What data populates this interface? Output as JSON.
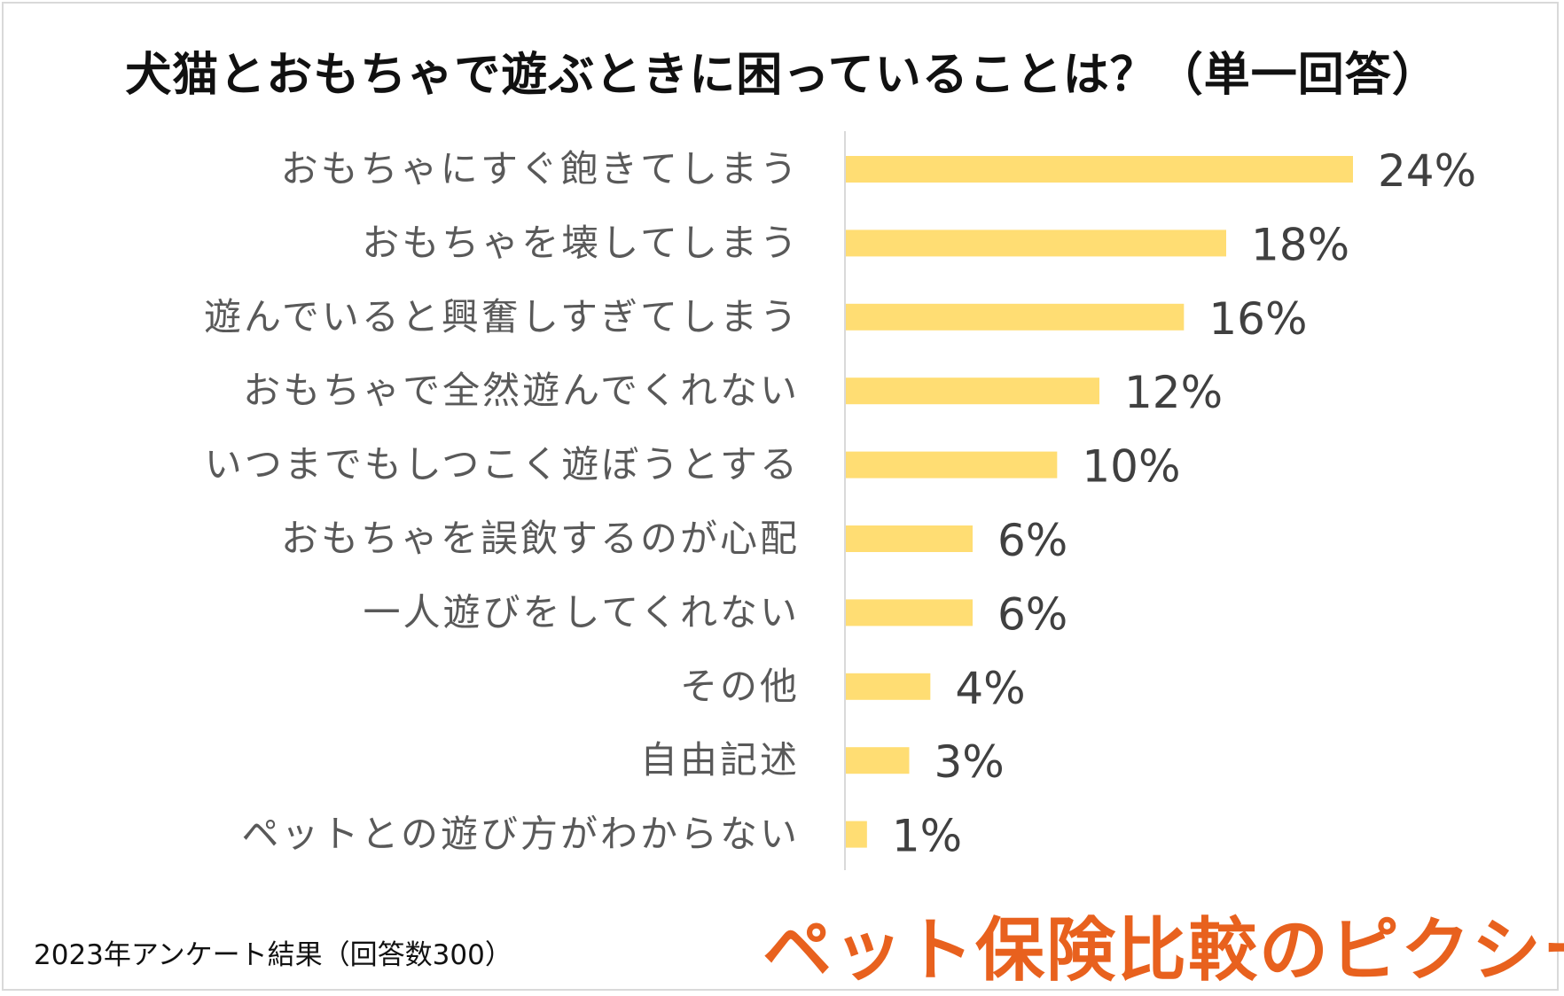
{
  "chart_data": {
    "type": "bar",
    "orientation": "horizontal",
    "title": "犬猫とおもちゃで遊ぶときに困っていることは？（単一回答）",
    "categories": [
      "おもちゃにすぐ飽きてしまう",
      "おもちゃを壊してしまう",
      "遊んでいると興奮しすぎてしまう",
      "おもちゃで全然遊んでくれない",
      "いつまでもしつこく遊ぼうとする",
      "おもちゃを誤飲するのが心配",
      "一人遊びをしてくれない",
      "その他",
      "自由記述",
      "ペットとの遊び方がわからない"
    ],
    "values": [
      24,
      18,
      16,
      12,
      10,
      6,
      6,
      4,
      3,
      1
    ],
    "value_labels": [
      "24%",
      "18%",
      "16%",
      "12%",
      "10%",
      "6%",
      "6%",
      "4%",
      "3%",
      "1%"
    ],
    "unit": "%",
    "xlim": [
      0,
      24
    ],
    "bar_color": "#ffdd73",
    "grid": false,
    "legend": "none"
  },
  "footnote": "2023年アンケート結果（回答数300）",
  "logo_text": "ペット保険比較のピクシー",
  "colors": {
    "bar": "#ffdd73",
    "label_text": "#595959",
    "value_text": "#404040",
    "axis": "#d9d9d9",
    "logo": "#e8611e"
  }
}
